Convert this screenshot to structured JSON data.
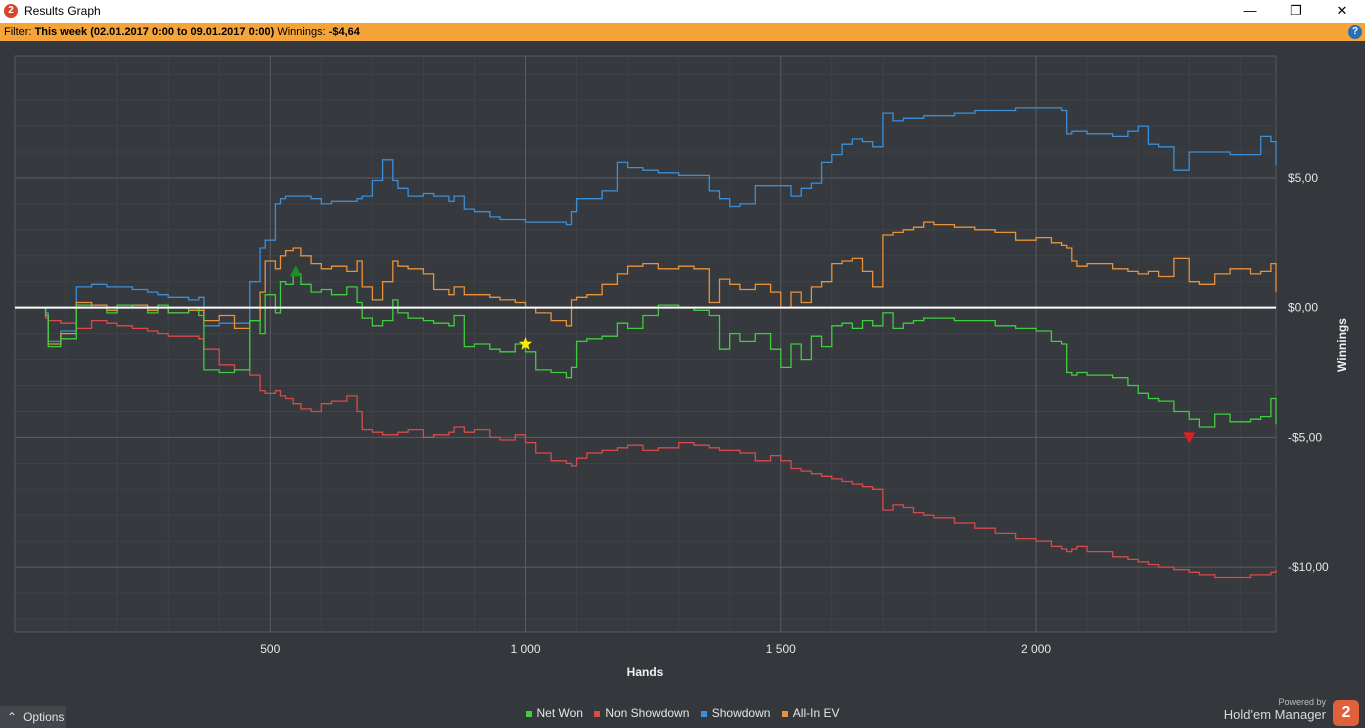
{
  "window": {
    "title": "Results Graph",
    "app_icon_glyph": "2",
    "controls": {
      "minimize": "—",
      "maximize": "❐",
      "close": "✕"
    }
  },
  "filter": {
    "label": "Filter:",
    "period": "This week (02.01.2017 0:00 to 09.01.2017 0:00)",
    "winnings_label": "Winnings:",
    "winnings_value": "-$4,64",
    "help_glyph": "?"
  },
  "footer": {
    "options_label": "Options",
    "options_glyph": "⌃",
    "powered_by": "Powered by",
    "brand": "Hold'em Manager",
    "brand_glyph": "2"
  },
  "colors": {
    "background": "#34373c",
    "filter_bar": "#f5a43a",
    "net_won": "#3fce3f",
    "non_showdown": "#d94a4a",
    "showdown": "#3c8fd6",
    "all_in_ev": "#e8923a",
    "zero_line": "#ffffff"
  },
  "chart_data": {
    "type": "line",
    "title": "",
    "xlabel": "Hands",
    "ylabel": "Winnings",
    "xlim": [
      0,
      2470
    ],
    "ylim": [
      -12.5,
      9.7
    ],
    "x_ticks": [
      500,
      1000,
      1500,
      2000
    ],
    "x_tick_labels": [
      "500",
      "1 000",
      "1 500",
      "2 000"
    ],
    "y_ticks": [
      5,
      0,
      -5,
      -10
    ],
    "y_tick_labels": [
      "$5,00",
      "$0,00",
      "-$5,00",
      "-$10,00"
    ],
    "grid": true,
    "legend_position": "bottom-center",
    "x": [
      0,
      60,
      65,
      90,
      120,
      150,
      180,
      200,
      230,
      260,
      280,
      300,
      340,
      360,
      370,
      400,
      430,
      460,
      480,
      490,
      510,
      520,
      530,
      545,
      560,
      580,
      600,
      620,
      650,
      670,
      680,
      700,
      720,
      740,
      750,
      770,
      800,
      820,
      850,
      860,
      880,
      900,
      930,
      950,
      980,
      1000,
      1020,
      1050,
      1080,
      1090,
      1100,
      1120,
      1150,
      1180,
      1200,
      1230,
      1260,
      1300,
      1330,
      1360,
      1380,
      1400,
      1420,
      1450,
      1480,
      1500,
      1520,
      1540,
      1560,
      1580,
      1600,
      1620,
      1640,
      1660,
      1680,
      1700,
      1720,
      1740,
      1760,
      1780,
      1800,
      1840,
      1880,
      1920,
      1960,
      2000,
      2030,
      2050,
      2060,
      2070,
      2080,
      2100,
      2150,
      2180,
      2200,
      2220,
      2240,
      2270,
      2300,
      2320,
      2350,
      2380,
      2420,
      2440,
      2460,
      2470
    ],
    "series": [
      {
        "name": "Net Won",
        "values": [
          0,
          -0.3,
          -1.5,
          -1.2,
          0.1,
          0.0,
          -0.2,
          0.1,
          0.0,
          -0.2,
          0.1,
          -0.2,
          0.0,
          -0.3,
          -2.4,
          -2.5,
          -2.4,
          -0.5,
          -1.0,
          0.5,
          -0.2,
          1.0,
          0.9,
          1.3,
          0.9,
          0.6,
          0.7,
          0.5,
          0.8,
          0.2,
          -0.4,
          -0.7,
          -0.5,
          0.3,
          -0.2,
          -0.4,
          -0.5,
          -0.6,
          -0.7,
          -0.3,
          -1.5,
          -1.4,
          -1.6,
          -1.7,
          -1.4,
          -1.7,
          -2.4,
          -2.5,
          -2.7,
          -2.3,
          -1.3,
          -1.2,
          -1.1,
          -0.6,
          -0.8,
          -0.3,
          0.1,
          0.0,
          -0.1,
          -0.3,
          -1.6,
          -1.0,
          -1.3,
          -1.0,
          -1.6,
          -2.3,
          -1.4,
          -2.0,
          -1.1,
          -1.5,
          -0.7,
          -0.6,
          -0.8,
          -0.5,
          -0.7,
          -0.2,
          -0.8,
          -0.6,
          -0.5,
          -0.4,
          -0.4,
          -0.5,
          -0.5,
          -0.7,
          -0.8,
          -0.9,
          -1.3,
          -1.4,
          -2.5,
          -2.6,
          -2.5,
          -2.6,
          -2.7,
          -3.0,
          -3.3,
          -3.5,
          -3.6,
          -4.0,
          -4.3,
          -4.6,
          -4.1,
          -4.4,
          -4.3,
          -4.2,
          -3.5,
          -4.5
        ]
      },
      {
        "name": "Non Showdown",
        "values": [
          0,
          -0.4,
          -0.5,
          -0.6,
          -0.8,
          -0.5,
          -0.6,
          -0.7,
          -0.8,
          -0.9,
          -1.0,
          -1.1,
          -1.1,
          -1.2,
          -1.6,
          -2.2,
          -2.4,
          -2.6,
          -3.2,
          -3.3,
          -3.2,
          -3.4,
          -3.5,
          -3.7,
          -3.9,
          -4.0,
          -3.7,
          -3.6,
          -3.4,
          -4.0,
          -4.7,
          -4.8,
          -4.9,
          -4.9,
          -4.8,
          -4.7,
          -5.0,
          -4.9,
          -4.8,
          -4.6,
          -4.8,
          -4.7,
          -5.0,
          -5.1,
          -4.9,
          -5.2,
          -5.6,
          -5.9,
          -6.0,
          -6.1,
          -5.8,
          -5.6,
          -5.5,
          -5.4,
          -5.3,
          -5.5,
          -5.4,
          -5.2,
          -5.3,
          -5.4,
          -5.5,
          -5.5,
          -5.6,
          -5.9,
          -5.7,
          -5.9,
          -6.2,
          -6.3,
          -6.4,
          -6.5,
          -6.6,
          -6.7,
          -6.8,
          -6.9,
          -7.0,
          -7.8,
          -7.6,
          -7.7,
          -7.9,
          -8.0,
          -8.1,
          -8.3,
          -8.5,
          -8.7,
          -8.9,
          -9.0,
          -9.2,
          -9.3,
          -9.4,
          -9.3,
          -9.2,
          -9.4,
          -9.6,
          -9.7,
          -9.8,
          -9.9,
          -10.0,
          -10.1,
          -10.2,
          -10.3,
          -10.4,
          -10.4,
          -10.3,
          -10.3,
          -10.2,
          -10.1
        ]
      },
      {
        "name": "Showdown",
        "values": [
          0,
          -0.2,
          -1.3,
          -0.9,
          0.8,
          0.9,
          0.8,
          0.8,
          0.7,
          0.6,
          0.5,
          0.4,
          0.3,
          0.4,
          -0.7,
          -0.6,
          -0.6,
          1.0,
          2.3,
          2.6,
          4.0,
          4.2,
          4.3,
          4.3,
          4.3,
          4.2,
          4.0,
          4.1,
          4.1,
          4.2,
          4.3,
          4.9,
          5.7,
          4.9,
          4.6,
          4.3,
          4.4,
          4.3,
          4.1,
          4.3,
          3.8,
          3.7,
          3.5,
          3.4,
          3.4,
          3.3,
          3.3,
          3.3,
          3.2,
          3.7,
          4.2,
          4.2,
          4.5,
          5.6,
          5.4,
          5.3,
          5.2,
          5.1,
          5.1,
          4.5,
          4.2,
          3.9,
          4.0,
          4.7,
          4.7,
          4.7,
          4.3,
          4.6,
          4.8,
          5.6,
          5.9,
          6.3,
          6.5,
          6.4,
          6.2,
          7.5,
          7.2,
          7.3,
          7.3,
          7.4,
          7.4,
          7.5,
          7.6,
          7.6,
          7.7,
          7.7,
          7.7,
          7.6,
          6.7,
          6.8,
          6.8,
          6.7,
          6.6,
          6.8,
          7.0,
          6.3,
          6.2,
          5.3,
          6.0,
          6.0,
          6.0,
          5.9,
          5.9,
          6.6,
          6.4,
          5.5
        ]
      },
      {
        "name": "All-In EV",
        "values": [
          0,
          -0.3,
          -1.4,
          -1.0,
          0.2,
          0.1,
          -0.1,
          0.0,
          0.1,
          -0.1,
          0.0,
          -0.2,
          -0.1,
          -0.1,
          -0.5,
          -0.3,
          -0.8,
          -0.5,
          0.6,
          1.8,
          1.5,
          2.0,
          2.2,
          2.3,
          2.0,
          1.7,
          1.5,
          1.6,
          1.4,
          1.8,
          0.8,
          0.3,
          1.0,
          1.8,
          1.6,
          1.5,
          1.3,
          0.7,
          0.5,
          0.8,
          0.5,
          0.5,
          0.4,
          0.3,
          0.2,
          0.0,
          -0.2,
          -0.5,
          -0.7,
          0.3,
          0.4,
          0.5,
          0.9,
          1.3,
          1.6,
          1.7,
          1.5,
          1.6,
          1.5,
          0.2,
          1.1,
          0.9,
          0.7,
          0.9,
          0.6,
          0.0,
          0.6,
          0.2,
          0.8,
          1.0,
          1.7,
          1.8,
          1.9,
          1.4,
          0.8,
          2.8,
          2.9,
          3.0,
          3.1,
          3.3,
          3.2,
          3.1,
          3.0,
          2.9,
          2.6,
          2.7,
          2.5,
          2.4,
          2.3,
          1.8,
          1.6,
          1.7,
          1.5,
          1.4,
          1.3,
          1.4,
          1.2,
          1.9,
          1.0,
          0.9,
          1.3,
          1.5,
          1.3,
          1.4,
          1.7,
          0.6
        ]
      }
    ],
    "markers": [
      {
        "shape": "triangle-up",
        "x": 550,
        "y": 1.4,
        "color": "#1f8f1f"
      },
      {
        "shape": "star",
        "x": 1000,
        "y": -1.4,
        "color": "#ffee00"
      },
      {
        "shape": "triangle-down",
        "x": 2300,
        "y": -5.0,
        "color": "#e02020"
      }
    ]
  }
}
